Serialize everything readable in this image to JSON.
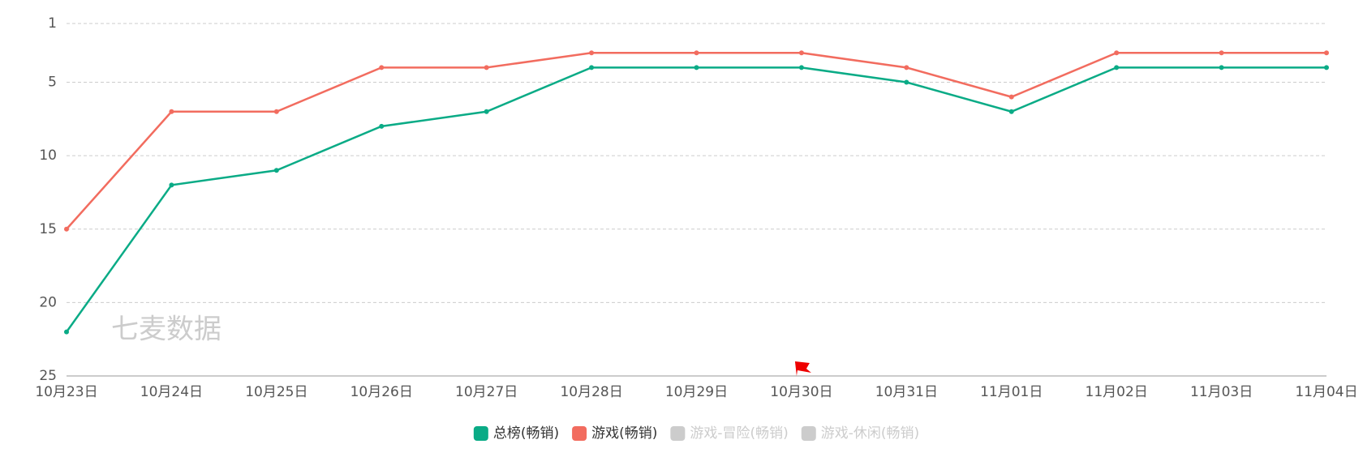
{
  "chart_data": {
    "type": "line",
    "watermark": "七麦数据",
    "x": [
      "10月23日",
      "10月24日",
      "10月25日",
      "10月26日",
      "10月27日",
      "10月28日",
      "10月29日",
      "10月30日",
      "10月31日",
      "11月01日",
      "11月02日",
      "11月03日",
      "11月04日"
    ],
    "series": [
      {
        "name": "总榜(畅销)",
        "color": "#0aab86",
        "visible": true,
        "values": [
          22,
          12,
          11,
          8,
          7,
          4,
          4,
          4,
          5,
          7,
          4,
          4,
          4
        ]
      },
      {
        "name": "游戏(畅销)",
        "color": "#f26c5f",
        "visible": true,
        "values": [
          15,
          7,
          7,
          4,
          4,
          3,
          3,
          3,
          4,
          6,
          3,
          3,
          3
        ]
      },
      {
        "name": "游戏-冒险(畅销)",
        "color": "#cccccc",
        "visible": false,
        "values": [
          null,
          null,
          null,
          null,
          null,
          null,
          null,
          null,
          null,
          null,
          null,
          null,
          null
        ]
      },
      {
        "name": "游戏-休闲(畅销)",
        "color": "#cccccc",
        "visible": false,
        "values": [
          null,
          null,
          null,
          null,
          null,
          null,
          null,
          null,
          null,
          null,
          null,
          null,
          null
        ]
      }
    ],
    "ylim": [
      1,
      25
    ],
    "y_inverted": true,
    "yticks": [
      1,
      5,
      10,
      15,
      20,
      25
    ],
    "grid": true,
    "legend": "bottom"
  }
}
